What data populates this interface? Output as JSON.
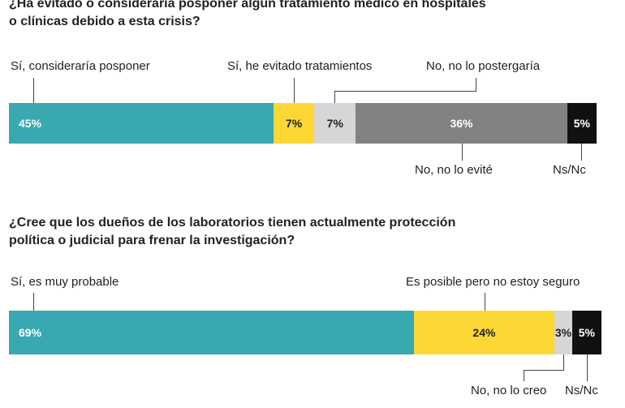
{
  "chart_data": [
    {
      "type": "bar",
      "orientation": "horizontal-stacked-100",
      "title_lines": [
        "¿Ha evitado o consideraría posponer algún tratamiento médico en hospitales",
        "o clínicas debido a esta crisis?"
      ],
      "categories": [
        "Sí, consideraría posponer",
        "Sí, he evitado tratamientos",
        "No, no lo postergaría",
        "No, no lo evité",
        "Ns/Nc"
      ],
      "values": [
        45,
        7,
        7,
        36,
        5
      ],
      "value_labels": [
        "45%",
        "7%",
        "7%",
        "36%",
        "5%"
      ],
      "colors": [
        "#38a8b1",
        "#fdd835",
        "#d6d6d6",
        "#828282",
        "#111111"
      ],
      "label_colors": [
        "#ffffff",
        "#222222",
        "#222222",
        "#ffffff",
        "#ffffff"
      ]
    },
    {
      "type": "bar",
      "orientation": "horizontal-stacked-100",
      "title_lines": [
        "¿Cree que los dueños de los laboratorios tienen actualmente protección",
        "política o judicial para frenar la investigación?"
      ],
      "categories": [
        "Sí, es muy probable",
        "Es posible pero no estoy seguro",
        "No, no lo creo",
        "Ns/Nc"
      ],
      "values": [
        69,
        24,
        3,
        5
      ],
      "value_labels": [
        "69%",
        "24%",
        "3%",
        "5%"
      ],
      "colors": [
        "#38a8b1",
        "#fdd835",
        "#d6d6d6",
        "#111111"
      ],
      "label_colors": [
        "#ffffff",
        "#222222",
        "#222222",
        "#ffffff"
      ]
    }
  ]
}
